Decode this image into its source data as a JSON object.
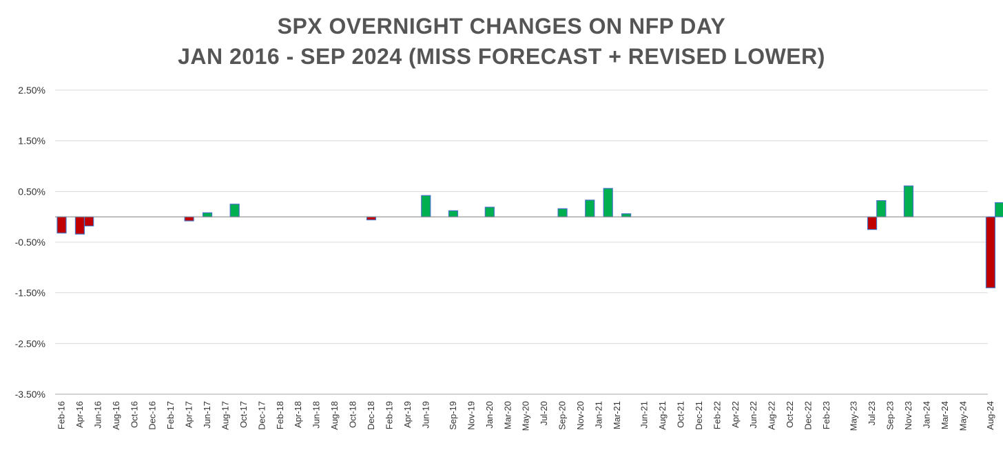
{
  "chart_data": {
    "type": "bar",
    "title_lines": [
      "SPX OVERNIGHT CHANGES ON NFP DAY",
      "JAN 2016 - SEP 2024 (MISS FORECAST + REVISED LOWER)"
    ],
    "xlabel": "",
    "ylabel": "",
    "ylim": [
      -3.5,
      2.5
    ],
    "yticks": [
      2.5,
      1.5,
      0.5,
      -0.5,
      -1.5,
      -2.5,
      -3.5
    ],
    "ytick_labels": [
      "2.50%",
      "1.50%",
      "0.50%",
      "-0.50%",
      "-1.50%",
      "-2.50%",
      "-3.50%"
    ],
    "grid": true,
    "x_start": "2016-02",
    "x_tick_labels": [
      "Feb-16",
      "Apr-16",
      "Jun-16",
      "Aug-16",
      "Oct-16",
      "Dec-16",
      "Feb-17",
      "Apr-17",
      "Jun-17",
      "Aug-17",
      "Oct-17",
      "Dec-17",
      "Feb-18",
      "Apr-18",
      "Jun-18",
      "Aug-18",
      "Oct-18",
      "Dec-18",
      "Feb-19",
      "Apr-19",
      "Jun-19",
      "Sep-19",
      "Nov-19",
      "Jan-20",
      "Mar-20",
      "May-20",
      "Jul-20",
      "Sep-20",
      "Nov-20",
      "Jan-21",
      "Mar-21",
      "Jun-21",
      "Aug-21",
      "Oct-21",
      "Dec-21",
      "Feb-22",
      "Apr-22",
      "Jun-22",
      "Aug-22",
      "Oct-22",
      "Dec-22",
      "Feb-23",
      "May-23",
      "Jul-23",
      "Sep-23",
      "Nov-23",
      "Jan-24",
      "Mar-24",
      "May-24",
      "Aug-24"
    ],
    "categories": [
      "Feb-16",
      "Apr-16",
      "May-16",
      "Apr-17",
      "Jun-17",
      "Sep-17",
      "Dec-18",
      "Jun-19",
      "Sep-19",
      "Jan-20",
      "Sep-20",
      "Dec-20",
      "Feb-21",
      "Apr-21",
      "Jul-23",
      "Aug-23",
      "Nov-23",
      "Aug-24",
      "Sep-24"
    ],
    "values": [
      -0.32,
      -0.34,
      -0.18,
      -0.08,
      0.08,
      0.25,
      -0.06,
      0.42,
      0.12,
      0.19,
      0.16,
      0.33,
      0.56,
      0.06,
      -0.25,
      0.32,
      0.61,
      -1.4,
      0.28
    ],
    "colors": {
      "positive": "#00b050",
      "negative": "#c00000",
      "outline": "#4472c4",
      "grid": "#d9d9d9",
      "axis": "#a6a6a6"
    }
  }
}
